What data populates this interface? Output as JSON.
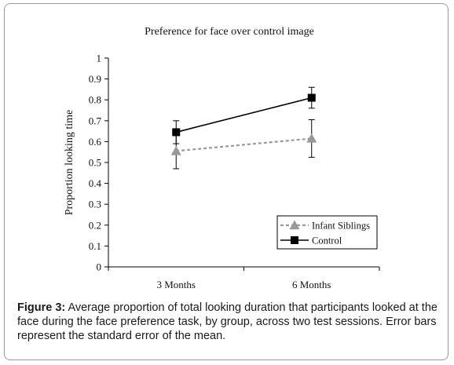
{
  "chart_data": {
    "type": "line",
    "title": "Preference for face over control image",
    "xlabel": "",
    "ylabel": "Proportion looking time",
    "categories": [
      "3 Months",
      "6 Months"
    ],
    "ylim": [
      0,
      1
    ],
    "yticks": [
      "0",
      "0.1",
      "0.2",
      "0.3",
      "0.4",
      "0.5",
      "0.6",
      "0.7",
      "0.8",
      "0.9",
      "1"
    ],
    "grid": false,
    "legend_position": "bottom-right",
    "series": [
      {
        "name": "Infant Siblings",
        "values": [
          0.555,
          0.615
        ],
        "error": [
          0.085,
          0.09
        ],
        "marker": "triangle",
        "line": "dashed",
        "color": "#999999"
      },
      {
        "name": "Control",
        "values": [
          0.645,
          0.81
        ],
        "error": [
          0.055,
          0.05
        ],
        "marker": "square",
        "line": "solid",
        "color": "#000000"
      }
    ]
  },
  "caption": {
    "label": "Figure 3:",
    "text": " Average proportion of total looking duration that participants looked at the face during the face preference task, by group, across two test sessions. Error bars represent the standard error of the mean."
  }
}
